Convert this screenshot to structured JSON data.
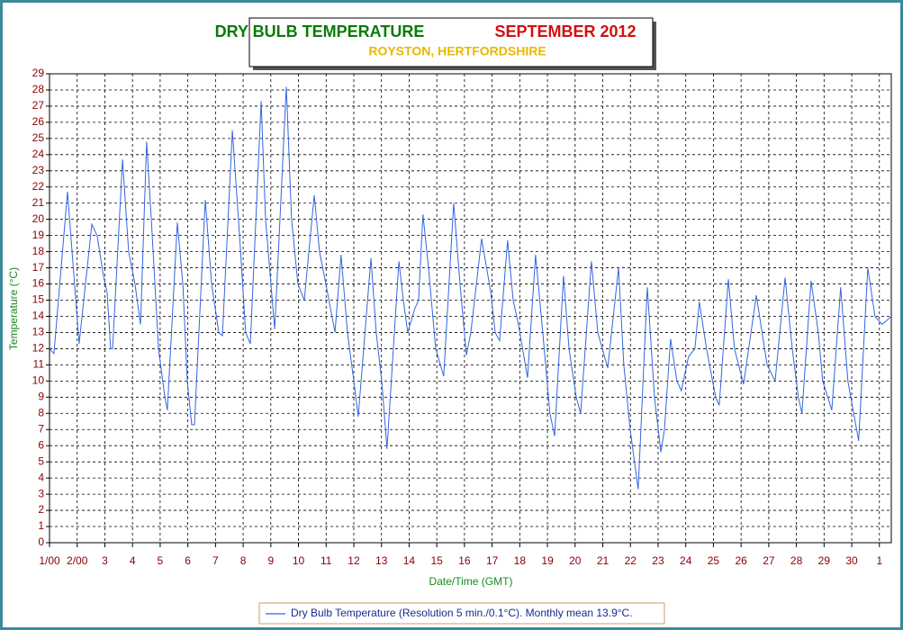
{
  "chart_data": {
    "type": "line",
    "title": "DRY BULB TEMPERATURE",
    "title_period": "SEPTEMBER 2012",
    "subtitle": "ROYSTON, HERTFORDSHIRE",
    "x_label": "Date/Time (GMT)",
    "y_label": "Temperature (°C)",
    "grid": true,
    "xlim": [
      1,
      31.43
    ],
    "ylim": [
      0,
      29
    ],
    "xticks": [
      {
        "value": 1,
        "label": "1/00"
      },
      {
        "value": 2,
        "label": "2/00"
      },
      3,
      4,
      5,
      6,
      7,
      8,
      9,
      10,
      11,
      12,
      13,
      14,
      15,
      16,
      17,
      18,
      19,
      20,
      21,
      22,
      23,
      24,
      25,
      26,
      27,
      28,
      29,
      30,
      {
        "value": 31,
        "label": "1"
      }
    ],
    "yticks": [
      0,
      1,
      2,
      3,
      4,
      5,
      6,
      7,
      8,
      9,
      10,
      11,
      12,
      13,
      14,
      15,
      16,
      17,
      18,
      19,
      20,
      21,
      22,
      23,
      24,
      25,
      26,
      27,
      28,
      29
    ],
    "series": [
      {
        "name": "Dry Bulb Temperature (Resolution 5 min./0.1°C). Monthly mean 13.9°C.",
        "color": "#3366e0",
        "x": [
          1.0,
          1.16,
          1.65,
          2.07,
          2.53,
          2.72,
          2.95,
          3.08,
          3.21,
          3.28,
          3.64,
          3.86,
          4.09,
          4.29,
          4.51,
          4.68,
          4.94,
          5.17,
          5.26,
          5.62,
          5.82,
          5.98,
          6.14,
          6.24,
          6.63,
          6.86,
          7.12,
          7.25,
          7.61,
          7.87,
          8.09,
          8.26,
          8.65,
          8.81,
          9.14,
          9.56,
          9.75,
          9.98,
          10.21,
          10.57,
          10.76,
          10.99,
          11.32,
          11.54,
          11.77,
          12.0,
          12.16,
          12.62,
          12.81,
          13.01,
          13.2,
          13.63,
          13.79,
          13.95,
          14.21,
          14.34,
          14.5,
          14.7,
          14.96,
          15.25,
          15.61,
          15.84,
          16.07,
          16.23,
          16.62,
          16.95,
          17.11,
          17.27,
          17.56,
          17.76,
          17.95,
          18.28,
          18.57,
          18.83,
          19.09,
          19.26,
          19.58,
          19.78,
          20.04,
          20.2,
          20.59,
          20.82,
          21.18,
          21.57,
          21.76,
          21.99,
          22.28,
          22.61,
          22.87,
          23.1,
          23.23,
          23.45,
          23.68,
          23.84,
          24.1,
          24.33,
          24.49,
          24.75,
          25.08,
          25.21,
          25.54,
          25.76,
          26.09,
          26.55,
          26.94,
          27.23,
          27.59,
          27.85,
          28.07,
          28.2,
          28.53,
          28.79,
          28.95,
          29.28,
          29.6,
          29.86,
          30.25,
          30.58,
          30.84,
          31.1,
          31.43
        ],
        "values": [
          12,
          11.7,
          21.7,
          12.3,
          19.7,
          19,
          16.5,
          15.5,
          12,
          12,
          23.7,
          18,
          16,
          13.5,
          24.8,
          20,
          12,
          9,
          8.2,
          19.8,
          16,
          10,
          7.3,
          7.3,
          21.2,
          16,
          13,
          12.8,
          25.5,
          19,
          13,
          12.3,
          27.3,
          20,
          13.2,
          28.2,
          20,
          16,
          15,
          21.5,
          18,
          16,
          13,
          17.8,
          13,
          10,
          7.8,
          17.6,
          13,
          10,
          5.8,
          17.4,
          15,
          13,
          14.5,
          15,
          20.3,
          17,
          12,
          10.3,
          21,
          16,
          11.6,
          13,
          18.8,
          15.5,
          13,
          12.5,
          18.7,
          15,
          13.5,
          10.2,
          17.8,
          13,
          8,
          6.6,
          16.5,
          12,
          9,
          8,
          17.4,
          13,
          10.8,
          17,
          11,
          7,
          3.3,
          15.8,
          9,
          5.6,
          7,
          12.6,
          10,
          9.4,
          11.5,
          12,
          14.9,
          12,
          9,
          8.5,
          16.3,
          12,
          9.8,
          15.3,
          11,
          10,
          16.4,
          12,
          9,
          8,
          16.2,
          13,
          10,
          8.2,
          15.8,
          10,
          6.3,
          17,
          14,
          13.5,
          14
        ]
      }
    ]
  }
}
